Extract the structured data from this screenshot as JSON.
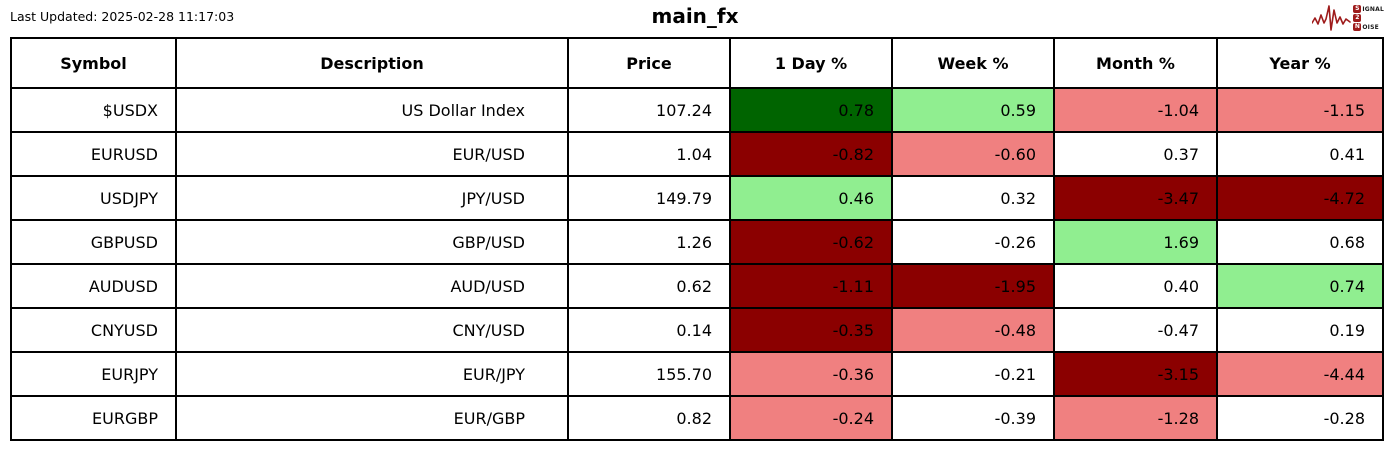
{
  "header": {
    "last_updated": "Last Updated: 2025-02-28 11:17:03",
    "title": "main_fx"
  },
  "logo": {
    "word1_initial": "S",
    "word1_rest": "IGNAL",
    "word2": "2",
    "word3_initial": "N",
    "word3_rest": "OISE",
    "accent_color": "#9e1b1b"
  },
  "chart_data": {
    "type": "table",
    "title": "main_fx",
    "last_updated": "2025-02-28 11:17:03",
    "columns": [
      "Symbol",
      "Description",
      "Price",
      "1 Day %",
      "Week %",
      "Month %",
      "Year %"
    ],
    "colors": {
      "dark_green": "#006400",
      "light_green": "#90EE90",
      "dark_red": "#8B0000",
      "light_red": "#F08080",
      "none": "#FFFFFF"
    },
    "rows": [
      {
        "symbol": "$USDX",
        "description": "US Dollar Index",
        "price": "107.24",
        "changes": [
          {
            "value": "0.78",
            "bg": "dark_green"
          },
          {
            "value": "0.59",
            "bg": "light_green"
          },
          {
            "value": "-1.04",
            "bg": "light_red"
          },
          {
            "value": "-1.15",
            "bg": "light_red"
          }
        ]
      },
      {
        "symbol": "EURUSD",
        "description": "EUR/USD",
        "price": "1.04",
        "changes": [
          {
            "value": "-0.82",
            "bg": "dark_red"
          },
          {
            "value": "-0.60",
            "bg": "light_red"
          },
          {
            "value": "0.37",
            "bg": "none"
          },
          {
            "value": "0.41",
            "bg": "none"
          }
        ]
      },
      {
        "symbol": "USDJPY",
        "description": "JPY/USD",
        "price": "149.79",
        "changes": [
          {
            "value": "0.46",
            "bg": "light_green"
          },
          {
            "value": "0.32",
            "bg": "none"
          },
          {
            "value": "-3.47",
            "bg": "dark_red"
          },
          {
            "value": "-4.72",
            "bg": "dark_red"
          }
        ]
      },
      {
        "symbol": "GBPUSD",
        "description": "GBP/USD",
        "price": "1.26",
        "changes": [
          {
            "value": "-0.62",
            "bg": "dark_red"
          },
          {
            "value": "-0.26",
            "bg": "none"
          },
          {
            "value": "1.69",
            "bg": "light_green"
          },
          {
            "value": "0.68",
            "bg": "none"
          }
        ]
      },
      {
        "symbol": "AUDUSD",
        "description": "AUD/USD",
        "price": "0.62",
        "changes": [
          {
            "value": "-1.11",
            "bg": "dark_red"
          },
          {
            "value": "-1.95",
            "bg": "dark_red"
          },
          {
            "value": "0.40",
            "bg": "none"
          },
          {
            "value": "0.74",
            "bg": "light_green"
          }
        ]
      },
      {
        "symbol": "CNYUSD",
        "description": "CNY/USD",
        "price": "0.14",
        "changes": [
          {
            "value": "-0.35",
            "bg": "dark_red"
          },
          {
            "value": "-0.48",
            "bg": "light_red"
          },
          {
            "value": "-0.47",
            "bg": "none"
          },
          {
            "value": "0.19",
            "bg": "none"
          }
        ]
      },
      {
        "symbol": "EURJPY",
        "description": "EUR/JPY",
        "price": "155.70",
        "changes": [
          {
            "value": "-0.36",
            "bg": "light_red"
          },
          {
            "value": "-0.21",
            "bg": "none"
          },
          {
            "value": "-3.15",
            "bg": "dark_red"
          },
          {
            "value": "-4.44",
            "bg": "light_red"
          }
        ]
      },
      {
        "symbol": "EURGBP",
        "description": "EUR/GBP",
        "price": "0.82",
        "changes": [
          {
            "value": "-0.24",
            "bg": "light_red"
          },
          {
            "value": "-0.39",
            "bg": "none"
          },
          {
            "value": "-1.28",
            "bg": "light_red"
          },
          {
            "value": "-0.28",
            "bg": "none"
          }
        ]
      }
    ]
  }
}
